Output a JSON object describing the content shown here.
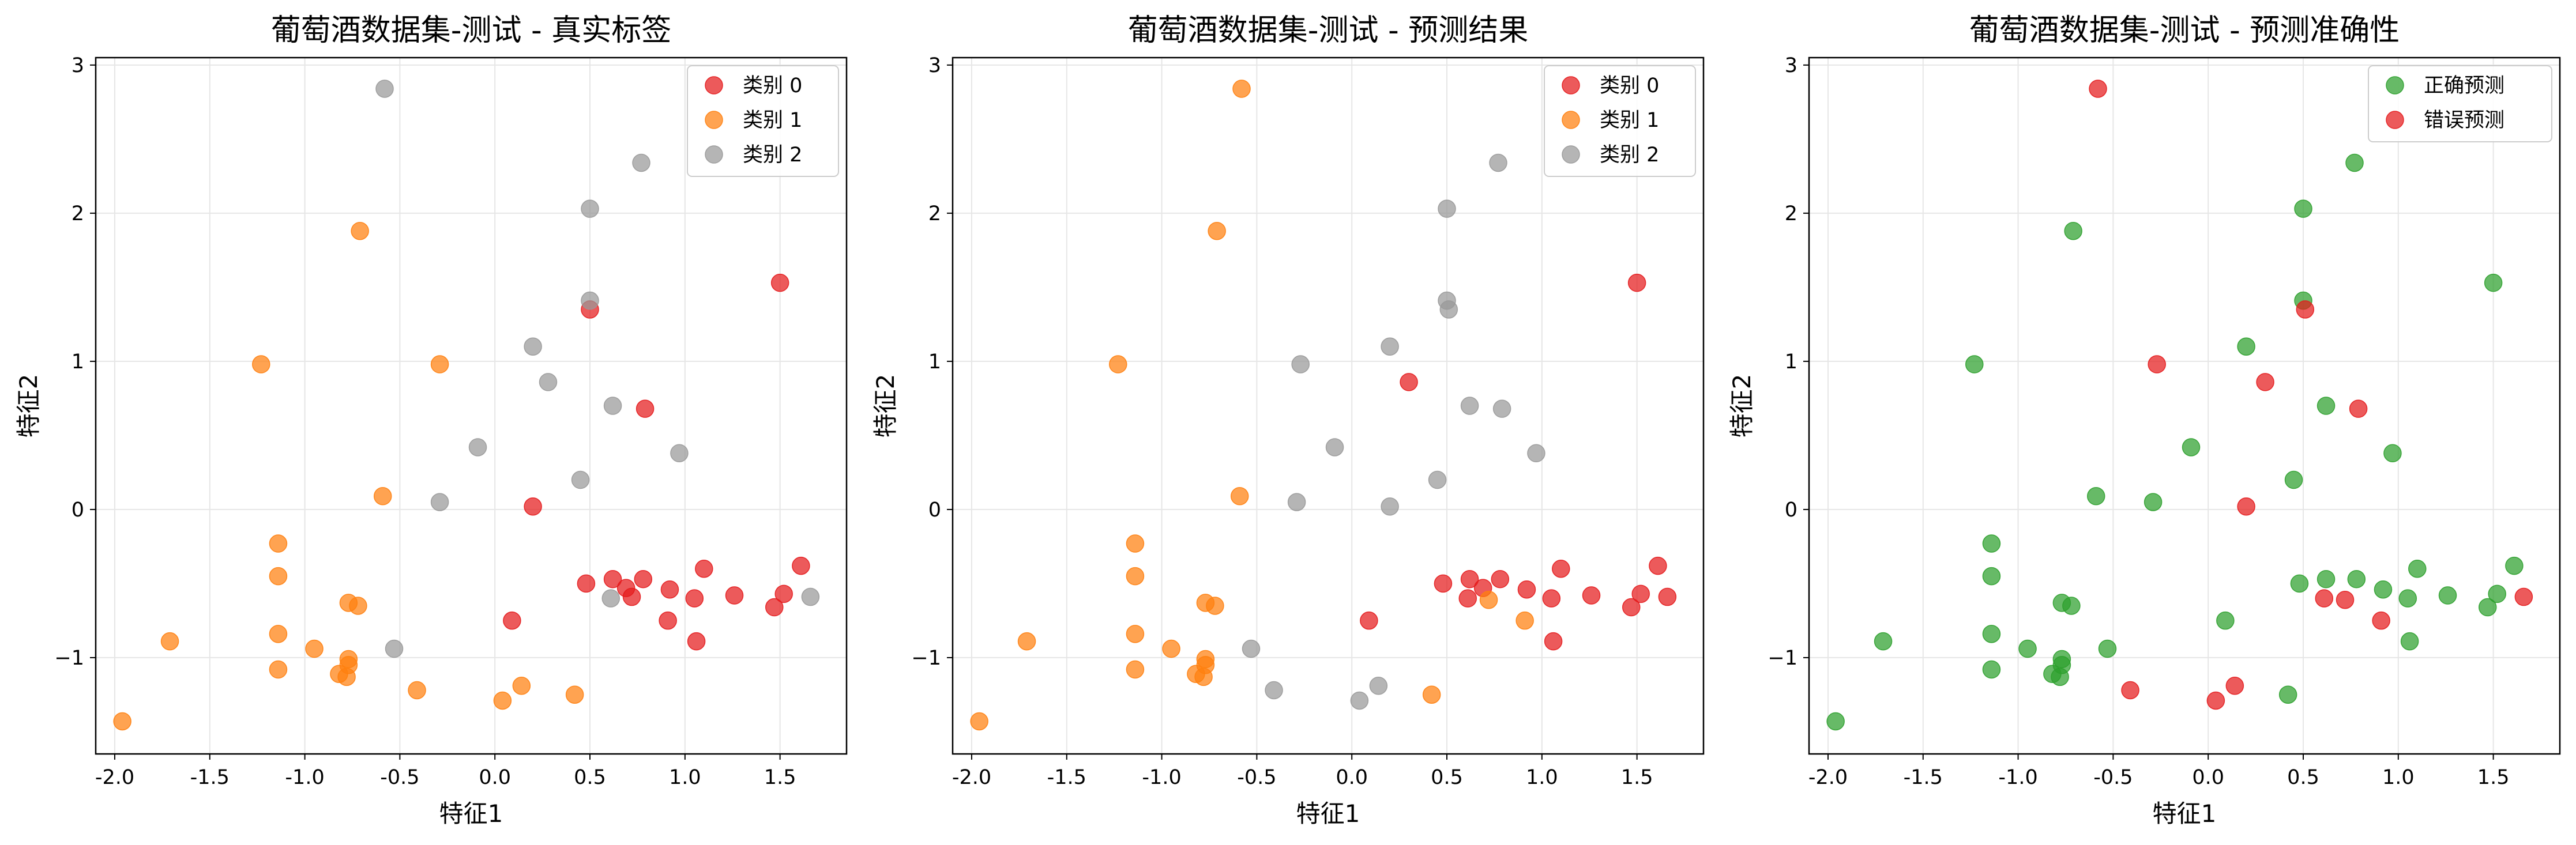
{
  "colors": {
    "class0": "#e41a1c",
    "class1": "#ff7f0e",
    "class2": "#999999",
    "correct": "#2ca02c",
    "wrong": "#e41a1c",
    "grid": "#e6e6e6",
    "frame": "#000000"
  },
  "chart_data": [
    {
      "type": "scatter",
      "title": "葡萄酒数据集-测试 - 真实标签",
      "xlabel": "特征1",
      "ylabel": "特征2",
      "xlim": [
        -2.1,
        1.85
      ],
      "ylim": [
        -1.65,
        3.05
      ],
      "xticks": [
        -2.0,
        -1.5,
        -1.0,
        -0.5,
        0.0,
        0.5,
        1.0,
        1.5
      ],
      "xtick_labels": [
        "-2.0",
        "-1.5",
        "-1.0",
        "-0.5",
        "0.0",
        "0.5",
        "1.0",
        "1.5"
      ],
      "yticks": [
        -1,
        0,
        1,
        2,
        3
      ],
      "ytick_labels": [
        "−1",
        "0",
        "1",
        "2",
        "3"
      ],
      "grid": true,
      "legend": "top-right",
      "series": [
        {
          "name": "类别 0",
          "color_key": "class0",
          "points": [
            [
              0.5,
              1.35
            ],
            [
              1.5,
              1.53
            ],
            [
              0.79,
              0.68
            ],
            [
              0.2,
              0.02
            ],
            [
              1.61,
              -0.38
            ],
            [
              1.52,
              -0.57
            ],
            [
              1.47,
              -0.66
            ],
            [
              1.26,
              -0.58
            ],
            [
              1.1,
              -0.4
            ],
            [
              1.05,
              -0.6
            ],
            [
              1.06,
              -0.89
            ],
            [
              0.91,
              -0.75
            ],
            [
              0.92,
              -0.54
            ],
            [
              0.78,
              -0.47
            ],
            [
              0.72,
              -0.59
            ],
            [
              0.69,
              -0.53
            ],
            [
              0.62,
              -0.47
            ],
            [
              0.48,
              -0.5
            ],
            [
              0.09,
              -0.75
            ]
          ]
        },
        {
          "name": "类别 1",
          "color_key": "class1",
          "points": [
            [
              -0.71,
              1.88
            ],
            [
              -1.23,
              0.98
            ],
            [
              -0.29,
              0.98
            ],
            [
              -0.59,
              0.09
            ],
            [
              -1.14,
              -0.23
            ],
            [
              -1.14,
              -0.45
            ],
            [
              -0.77,
              -0.63
            ],
            [
              -0.72,
              -0.65
            ],
            [
              -1.14,
              -0.84
            ],
            [
              -1.71,
              -0.89
            ],
            [
              -0.95,
              -0.94
            ],
            [
              -0.77,
              -1.01
            ],
            [
              -0.77,
              -1.05
            ],
            [
              -1.14,
              -1.08
            ],
            [
              -0.82,
              -1.11
            ],
            [
              -0.78,
              -1.13
            ],
            [
              -0.41,
              -1.22
            ],
            [
              0.14,
              -1.19
            ],
            [
              0.42,
              -1.25
            ],
            [
              0.04,
              -1.29
            ],
            [
              -1.96,
              -1.43
            ]
          ]
        },
        {
          "name": "类别 2",
          "color_key": "class2",
          "points": [
            [
              -0.58,
              2.84
            ],
            [
              0.77,
              2.34
            ],
            [
              0.5,
              2.03
            ],
            [
              0.5,
              1.41
            ],
            [
              0.2,
              1.1
            ],
            [
              0.28,
              0.86
            ],
            [
              0.62,
              0.7
            ],
            [
              0.97,
              0.38
            ],
            [
              -0.09,
              0.42
            ],
            [
              0.45,
              0.2
            ],
            [
              -0.29,
              0.05
            ],
            [
              0.61,
              -0.6
            ],
            [
              1.66,
              -0.59
            ],
            [
              -0.53,
              -0.94
            ]
          ]
        }
      ]
    },
    {
      "type": "scatter",
      "title": "葡萄酒数据集-测试 - 预测结果",
      "xlabel": "特征1",
      "ylabel": "特征2",
      "xlim": [
        -2.1,
        1.85
      ],
      "ylim": [
        -1.65,
        3.05
      ],
      "xticks": [
        -2.0,
        -1.5,
        -1.0,
        -0.5,
        0.0,
        0.5,
        1.0,
        1.5
      ],
      "xtick_labels": [
        "-2.0",
        "-1.5",
        "-1.0",
        "-0.5",
        "0.0",
        "0.5",
        "1.0",
        "1.5"
      ],
      "yticks": [
        -1,
        0,
        1,
        2,
        3
      ],
      "ytick_labels": [
        "−1",
        "0",
        "1",
        "2",
        "3"
      ],
      "grid": true,
      "legend": "top-right",
      "series": [
        {
          "name": "类别 0",
          "color_key": "class0",
          "points": [
            [
              1.5,
              1.53
            ],
            [
              0.3,
              0.86
            ],
            [
              1.61,
              -0.38
            ],
            [
              1.66,
              -0.59
            ],
            [
              1.52,
              -0.57
            ],
            [
              1.47,
              -0.66
            ],
            [
              1.26,
              -0.58
            ],
            [
              1.1,
              -0.4
            ],
            [
              1.05,
              -0.6
            ],
            [
              1.06,
              -0.89
            ],
            [
              0.92,
              -0.54
            ],
            [
              0.78,
              -0.47
            ],
            [
              0.69,
              -0.53
            ],
            [
              0.61,
              -0.6
            ],
            [
              0.62,
              -0.47
            ],
            [
              0.48,
              -0.5
            ],
            [
              0.09,
              -0.75
            ]
          ]
        },
        {
          "name": "类别 1",
          "color_key": "class1",
          "points": [
            [
              -0.58,
              2.84
            ],
            [
              -0.71,
              1.88
            ],
            [
              -1.23,
              0.98
            ],
            [
              -0.59,
              0.09
            ],
            [
              -1.14,
              -0.23
            ],
            [
              -1.14,
              -0.45
            ],
            [
              -0.77,
              -0.63
            ],
            [
              -0.72,
              -0.65
            ],
            [
              -1.14,
              -0.84
            ],
            [
              -1.71,
              -0.89
            ],
            [
              -0.95,
              -0.94
            ],
            [
              -0.77,
              -1.01
            ],
            [
              -0.77,
              -1.05
            ],
            [
              -1.14,
              -1.08
            ],
            [
              -0.82,
              -1.11
            ],
            [
              -0.78,
              -1.13
            ],
            [
              0.72,
              -0.61
            ],
            [
              0.91,
              -0.75
            ],
            [
              0.42,
              -1.25
            ],
            [
              -1.96,
              -1.43
            ]
          ]
        },
        {
          "name": "类别 2",
          "color_key": "class2",
          "points": [
            [
              0.77,
              2.34
            ],
            [
              0.5,
              2.03
            ],
            [
              0.5,
              1.41
            ],
            [
              0.51,
              1.35
            ],
            [
              0.2,
              1.1
            ],
            [
              -0.27,
              0.98
            ],
            [
              0.62,
              0.7
            ],
            [
              0.79,
              0.68
            ],
            [
              0.97,
              0.38
            ],
            [
              -0.09,
              0.42
            ],
            [
              0.45,
              0.2
            ],
            [
              -0.29,
              0.05
            ],
            [
              0.2,
              0.02
            ],
            [
              -0.53,
              -0.94
            ],
            [
              -0.41,
              -1.22
            ],
            [
              0.14,
              -1.19
            ],
            [
              0.04,
              -1.29
            ]
          ]
        }
      ]
    },
    {
      "type": "scatter",
      "title": "葡萄酒数据集-测试 - 预测准确性",
      "xlabel": "特征1",
      "ylabel": "特征2",
      "xlim": [
        -2.1,
        1.85
      ],
      "ylim": [
        -1.65,
        3.05
      ],
      "xticks": [
        -2.0,
        -1.5,
        -1.0,
        -0.5,
        0.0,
        0.5,
        1.0,
        1.5
      ],
      "xtick_labels": [
        "-2.0",
        "-1.5",
        "-1.0",
        "-0.5",
        "0.0",
        "0.5",
        "1.0",
        "1.5"
      ],
      "yticks": [
        -1,
        0,
        1,
        2,
        3
      ],
      "ytick_labels": [
        "−1",
        "0",
        "1",
        "2",
        "3"
      ],
      "grid": true,
      "legend": "top-right",
      "series": [
        {
          "name": "正确预测",
          "color_key": "correct",
          "points": [
            [
              0.77,
              2.34
            ],
            [
              0.5,
              2.03
            ],
            [
              -0.71,
              1.88
            ],
            [
              1.5,
              1.53
            ],
            [
              0.5,
              1.41
            ],
            [
              0.2,
              1.1
            ],
            [
              -1.23,
              0.98
            ],
            [
              0.62,
              0.7
            ],
            [
              -0.09,
              0.42
            ],
            [
              0.97,
              0.38
            ],
            [
              0.45,
              0.2
            ],
            [
              -0.59,
              0.09
            ],
            [
              -0.29,
              0.05
            ],
            [
              -1.14,
              -0.23
            ],
            [
              1.61,
              -0.38
            ],
            [
              1.1,
              -0.4
            ],
            [
              -1.14,
              -0.45
            ],
            [
              0.48,
              -0.5
            ],
            [
              0.62,
              -0.47
            ],
            [
              0.78,
              -0.47
            ],
            [
              0.92,
              -0.54
            ],
            [
              1.52,
              -0.57
            ],
            [
              1.26,
              -0.58
            ],
            [
              1.05,
              -0.6
            ],
            [
              -0.77,
              -0.63
            ],
            [
              -0.72,
              -0.65
            ],
            [
              1.47,
              -0.66
            ],
            [
              0.09,
              -0.75
            ],
            [
              -1.14,
              -0.84
            ],
            [
              -1.71,
              -0.89
            ],
            [
              1.06,
              -0.89
            ],
            [
              -0.95,
              -0.94
            ],
            [
              -0.53,
              -0.94
            ],
            [
              -0.77,
              -1.01
            ],
            [
              -0.77,
              -1.05
            ],
            [
              -1.14,
              -1.08
            ],
            [
              -0.82,
              -1.11
            ],
            [
              -0.78,
              -1.13
            ],
            [
              0.42,
              -1.25
            ],
            [
              -1.96,
              -1.43
            ]
          ]
        },
        {
          "name": "错误预测",
          "color_key": "wrong",
          "points": [
            [
              -0.58,
              2.84
            ],
            [
              0.51,
              1.35
            ],
            [
              -0.27,
              0.98
            ],
            [
              0.3,
              0.86
            ],
            [
              0.79,
              0.68
            ],
            [
              0.2,
              0.02
            ],
            [
              0.61,
              -0.6
            ],
            [
              0.72,
              -0.61
            ],
            [
              1.66,
              -0.59
            ],
            [
              0.91,
              -0.75
            ],
            [
              -0.41,
              -1.22
            ],
            [
              0.14,
              -1.19
            ],
            [
              0.04,
              -1.29
            ]
          ]
        }
      ]
    }
  ]
}
